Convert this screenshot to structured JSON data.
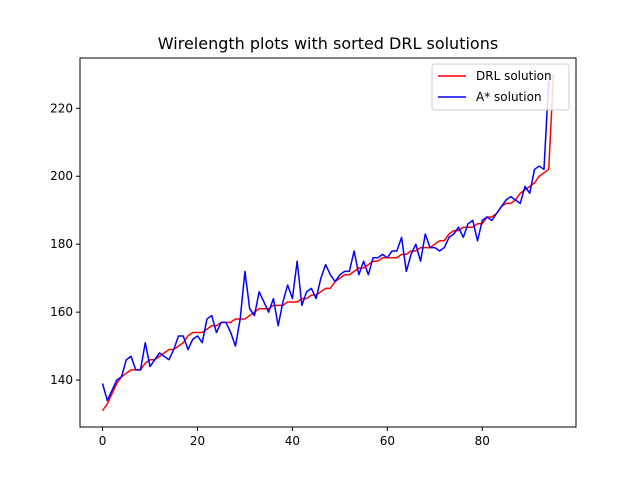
{
  "chart_data": {
    "type": "line",
    "title": "Wirelength plots with sorted DRL solutions",
    "xlabel": "",
    "ylabel": "",
    "xlim": [
      -4.75,
      99.75
    ],
    "ylim": [
      126.2,
      234.8
    ],
    "x_ticks": [
      0,
      20,
      40,
      60,
      80
    ],
    "y_ticks": [
      140,
      160,
      180,
      200,
      220
    ],
    "grid": false,
    "legend_position": "top-right",
    "x": [
      0,
      1,
      2,
      3,
      4,
      5,
      6,
      7,
      8,
      9,
      10,
      11,
      12,
      13,
      14,
      15,
      16,
      17,
      18,
      19,
      20,
      21,
      22,
      23,
      24,
      25,
      26,
      27,
      28,
      29,
      30,
      31,
      32,
      33,
      34,
      35,
      36,
      37,
      38,
      39,
      40,
      41,
      42,
      43,
      44,
      45,
      46,
      47,
      48,
      49,
      50,
      51,
      52,
      53,
      54,
      55,
      56,
      57,
      58,
      59,
      60,
      61,
      62,
      63,
      64,
      65,
      66,
      67,
      68,
      69,
      70,
      71,
      72,
      73,
      74,
      75,
      76,
      77,
      78,
      79,
      80,
      81,
      82,
      83,
      84,
      85,
      86,
      87,
      88,
      89,
      90,
      91,
      92,
      93,
      94,
      95
    ],
    "series": [
      {
        "name": "DRL solution",
        "color": "#ff0000",
        "values": [
          131,
          133,
          136,
          139,
          141,
          142,
          143,
          143,
          143,
          145,
          146,
          146,
          147,
          148,
          149,
          149,
          150,
          151,
          153,
          154,
          154,
          154,
          155,
          156,
          156,
          157,
          157,
          157,
          158,
          158,
          158,
          159,
          160,
          161,
          161,
          161,
          162,
          162,
          162,
          163,
          163,
          163,
          164,
          164,
          165,
          165,
          166,
          167,
          167,
          169,
          170,
          171,
          171,
          172,
          173,
          173,
          174,
          175,
          175,
          176,
          176,
          176,
          176,
          177,
          177,
          178,
          178,
          179,
          179,
          179,
          180,
          181,
          181,
          183,
          184,
          184,
          185,
          185,
          185,
          186,
          186,
          188,
          188,
          189,
          191,
          192,
          192,
          193,
          195,
          196,
          197,
          198,
          200,
          201,
          202,
          230
        ]
      },
      {
        "name": "A* solution",
        "color": "#0000ff",
        "values": [
          139,
          134,
          137,
          140,
          141,
          146,
          147,
          143,
          143,
          151,
          144,
          146,
          148,
          147,
          146,
          149,
          153,
          153,
          149,
          152,
          153,
          151,
          158,
          159,
          154,
          157,
          157,
          154,
          150,
          158,
          172,
          161,
          159,
          166,
          163,
          160,
          164,
          156,
          163,
          168,
          164,
          175,
          162,
          166,
          167,
          164,
          170,
          174,
          171,
          169,
          171,
          172,
          172,
          178,
          171,
          175,
          171,
          176,
          176,
          177,
          176,
          178,
          178,
          182,
          172,
          177,
          180,
          175,
          183,
          179,
          179,
          178,
          179,
          182,
          183,
          185,
          182,
          186,
          187,
          181,
          187,
          188,
          187,
          189,
          191,
          193,
          194,
          193,
          192,
          197,
          195,
          202,
          203,
          202,
          228,
          null
        ]
      }
    ]
  }
}
